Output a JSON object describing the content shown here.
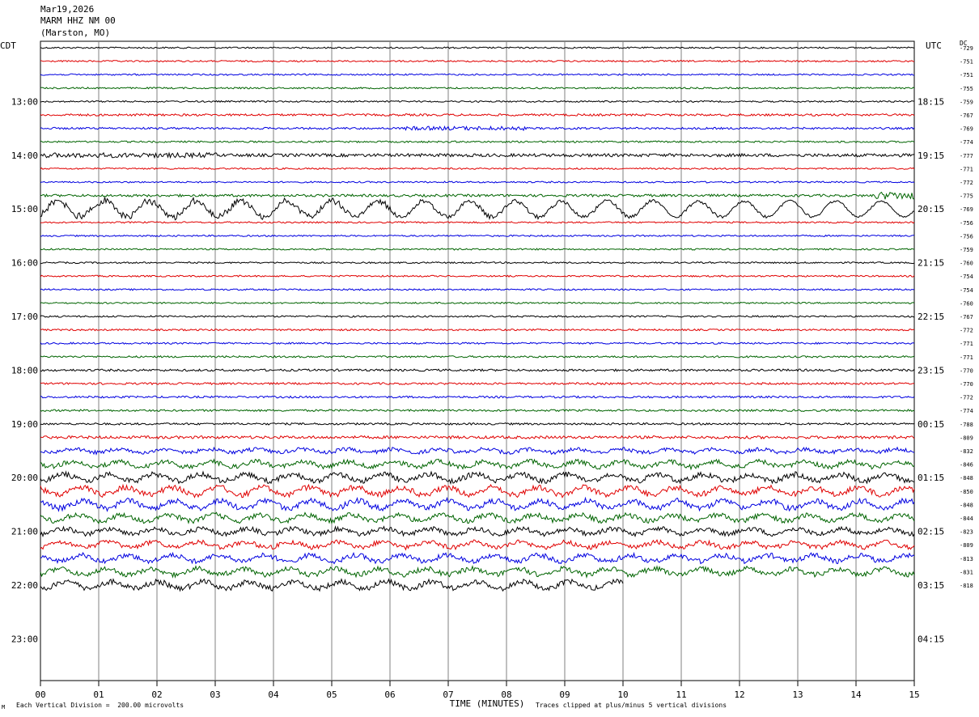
{
  "header": {
    "date": "Mar19,2026",
    "station": "MARM HHZ NM 00",
    "location": "(Marston, MO)"
  },
  "timezones": {
    "left": "CDT",
    "right": "UTC",
    "dc_label": "DC"
  },
  "chart_data": {
    "type": "line",
    "subtype": "helicorder-seismogram",
    "xlabel": "TIME (MINUTES)",
    "xlim": [
      0,
      15
    ],
    "x_ticks": [
      "00",
      "01",
      "02",
      "03",
      "04",
      "05",
      "06",
      "07",
      "08",
      "09",
      "10",
      "11",
      "12",
      "13",
      "14",
      "15"
    ],
    "grid": "vertical lines at each minute",
    "trace_colors": [
      "#000000",
      "#e00000",
      "#0000e0",
      "#006400"
    ],
    "left_time_labels": [
      "13:00",
      "14:00",
      "15:00",
      "16:00",
      "17:00",
      "18:00",
      "19:00",
      "20:00",
      "21:00",
      "22:00",
      "23:00"
    ],
    "right_time_labels": [
      "18:15",
      "19:15",
      "20:15",
      "21:15",
      "22:15",
      "23:15",
      "00:15",
      "01:15",
      "02:15",
      "03:15",
      "04:15"
    ],
    "dc_offsets": [
      "-729",
      "-751",
      "-751",
      "-755",
      "-759",
      "-767",
      "-769",
      "-774",
      "-777",
      "-771",
      "-772",
      "-775",
      "-769",
      "-756",
      "-756",
      "-759",
      "-760",
      "-754",
      "-754",
      "-760",
      "-767",
      "-772",
      "-771",
      "-771",
      "-770",
      "-770",
      "-772",
      "-774",
      "-788",
      "-809",
      "-832",
      "-846",
      "-848",
      "-850",
      "-848",
      "-844",
      "-823",
      "-809",
      "-813",
      "-831",
      "-818"
    ],
    "traces_per_hour": 4,
    "minutes_per_trace": 15,
    "last_trace_end_minute": 10,
    "activity_by_trace": [
      1,
      1,
      1,
      1,
      1,
      1.4,
      1.3,
      1.1,
      2,
      1,
      1,
      1.6,
      6,
      1,
      1,
      1,
      1,
      1,
      1,
      1,
      1.1,
      1.1,
      1.1,
      1.2,
      1.4,
      1.3,
      1.3,
      1.3,
      1.3,
      1.8,
      2.4,
      3,
      3.4,
      3.6,
      3.6,
      3.2,
      3,
      3,
      3.2,
      3.2,
      3.4
    ],
    "first_trace_hour": "12:00 CDT"
  },
  "footer": {
    "scale": "Each Vertical Division =  200.00 microvolts",
    "clip": "Traces clipped at plus/minus 5 vertical divisions",
    "corner_mark": "M"
  }
}
